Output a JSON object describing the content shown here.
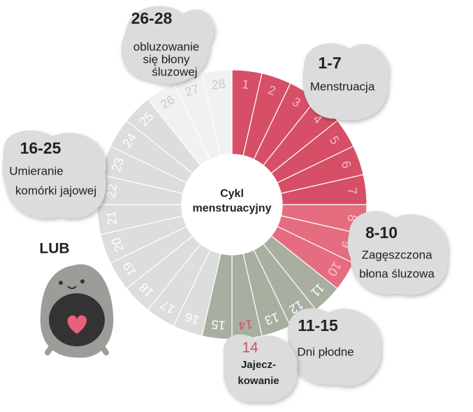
{
  "center_title": [
    "Cykl",
    "menstruacyjny"
  ],
  "days": [
    {
      "label": "1",
      "color": "#d64f67",
      "text_color": "#f3b9c3"
    },
    {
      "label": "2",
      "color": "#d64f67",
      "text_color": "#f3b9c3"
    },
    {
      "label": "3",
      "color": "#d64f67",
      "text_color": "#f3b9c3"
    },
    {
      "label": "4",
      "color": "#d64f67",
      "text_color": "#f3b9c3"
    },
    {
      "label": "5",
      "color": "#d64f67",
      "text_color": "#f3b9c3"
    },
    {
      "label": "6",
      "color": "#d64f67",
      "text_color": "#f3b9c3"
    },
    {
      "label": "7",
      "color": "#d64f67",
      "text_color": "#f3b9c3"
    },
    {
      "label": "8",
      "color": "#e66d80",
      "text_color": "#f7c5cd"
    },
    {
      "label": "9",
      "color": "#e66d80",
      "text_color": "#f7c5cd"
    },
    {
      "label": "10",
      "color": "#e66d80",
      "text_color": "#f7c5cd"
    },
    {
      "label": "11",
      "color": "#a8afa1",
      "text_color": "#ffffff"
    },
    {
      "label": "12",
      "color": "#a8afa1",
      "text_color": "#ffffff"
    },
    {
      "label": "13",
      "color": "#a8afa1",
      "text_color": "#ffffff"
    },
    {
      "label": "14",
      "color": "#a8afa1",
      "text_color": "#d64f67"
    },
    {
      "label": "15",
      "color": "#a8afa1",
      "text_color": "#ffffff"
    },
    {
      "label": "16",
      "color": "#dcdedb",
      "text_color": "#ffffff"
    },
    {
      "label": "17",
      "color": "#dcdedb",
      "text_color": "#ffffff"
    },
    {
      "label": "18",
      "color": "#dcdedb",
      "text_color": "#ffffff"
    },
    {
      "label": "19",
      "color": "#dcdedb",
      "text_color": "#ffffff"
    },
    {
      "label": "20",
      "color": "#dcdedb",
      "text_color": "#ffffff"
    },
    {
      "label": "21",
      "color": "#dcdedb",
      "text_color": "#ffffff"
    },
    {
      "label": "22",
      "color": "#dcdedb",
      "text_color": "#ffffff"
    },
    {
      "label": "23",
      "color": "#dcdedb",
      "text_color": "#ffffff"
    },
    {
      "label": "24",
      "color": "#dcdedb",
      "text_color": "#ffffff"
    },
    {
      "label": "25",
      "color": "#dcdedb",
      "text_color": "#ffffff"
    },
    {
      "label": "26",
      "color": "#f1f1f0",
      "text_color": "#c9cbc7"
    },
    {
      "label": "27",
      "color": "#f1f1f0",
      "text_color": "#c9cbc7"
    },
    {
      "label": "28",
      "color": "#f1f1f0",
      "text_color": "#c9cbc7"
    }
  ],
  "bubbles": [
    {
      "range": "26-28",
      "lines": [
        "obluzowanie",
        "się błony",
        "śluzowej"
      ]
    },
    {
      "range": "1-7",
      "lines": [
        "Menstruacja"
      ]
    },
    {
      "range": "16-25",
      "lines": [
        "Umieranie",
        "komórki jajowej"
      ]
    },
    {
      "range": "8-10",
      "lines": [
        "Zagęszczona",
        "błona śluzowa"
      ]
    },
    {
      "range": "11-15",
      "lines": [
        "Dni płodne"
      ]
    },
    {
      "range": "14",
      "lines": [
        "Jajecz-",
        "kowanie"
      ]
    }
  ],
  "or_label": "LUB"
}
